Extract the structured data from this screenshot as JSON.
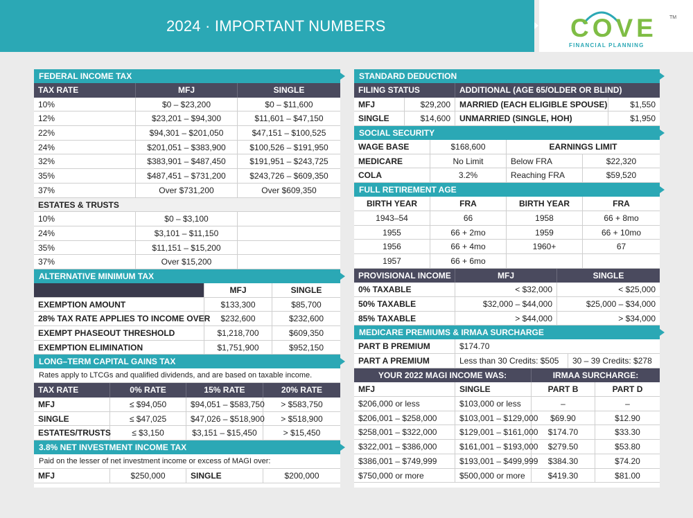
{
  "header": {
    "title": "2024 · IMPORTANT NUMBERS"
  },
  "logo": {
    "word": "COVE",
    "tm": "TM",
    "sub": "FINANCIAL PLANNING"
  },
  "fit": {
    "title": "FEDERAL INCOME TAX",
    "cols": [
      "TAX RATE",
      "MFJ",
      "SINGLE"
    ],
    "rows": [
      [
        "10%",
        "$0 – $23,200",
        "$0 – $11,600"
      ],
      [
        "12%",
        "$23,201 – $94,300",
        "$11,601 – $47,150"
      ],
      [
        "22%",
        "$94,301 – $201,050",
        "$47,151 – $100,525"
      ],
      [
        "24%",
        "$201,051 – $383,900",
        "$100,526 – $191,950"
      ],
      [
        "32%",
        "$383,901 – $487,450",
        "$191,951 – $243,725"
      ],
      [
        "35%",
        "$487,451 – $731,200",
        "$243,726 – $609,350"
      ],
      [
        "37%",
        "Over $731,200",
        "Over $609,350"
      ]
    ],
    "estates_title": "ESTATES & TRUSTS",
    "estates": [
      [
        "10%",
        "$0 – $3,100"
      ],
      [
        "24%",
        "$3,101 – $11,150"
      ],
      [
        "35%",
        "$11,151 – $15,200"
      ],
      [
        "37%",
        "Over $15,200"
      ]
    ]
  },
  "amt": {
    "title": "ALTERNATIVE MINIMUM TAX",
    "cols": [
      "",
      "MFJ",
      "SINGLE"
    ],
    "rows": [
      [
        "EXEMPTION AMOUNT",
        "$133,300",
        "$85,700"
      ],
      [
        "28% TAX RATE APPLIES TO INCOME OVER",
        "$232,600",
        "$232,600"
      ],
      [
        "EXEMPT PHASEOUT THRESHOLD",
        "$1,218,700",
        "$609,350"
      ],
      [
        "EXEMPTION ELIMINATION",
        "$1,751,900",
        "$952,150"
      ]
    ]
  },
  "ltcg": {
    "title": "LONG–TERM CAPITAL GAINS TAX",
    "note": "Rates apply to LTCGs and qualified dividends, and are based on taxable income.",
    "cols": [
      "TAX RATE",
      "0% RATE",
      "15% RATE",
      "20% RATE"
    ],
    "rows": [
      [
        "MFJ",
        "≤ $94,050",
        "$94,051 – $583,750",
        "> $583,750"
      ],
      [
        "SINGLE",
        "≤ $47,025",
        "$47,026 – $518,900",
        "> $518,900"
      ],
      [
        "ESTATES/TRUSTS",
        "≤ $3,150",
        "$3,151 – $15,450",
        "> $15,450"
      ]
    ]
  },
  "niit": {
    "title": "3.8% NET INVESTMENT INCOME TAX",
    "note": "Paid on the lesser of net investment income or excess of MAGI over:",
    "row": [
      "MFJ",
      "$250,000",
      "SINGLE",
      "$200,000"
    ]
  },
  "sd": {
    "title": "STANDARD DEDUCTION",
    "cols": [
      "FILING STATUS",
      "ADDITIONAL (AGE 65/OLDER OR BLIND)"
    ],
    "rows": [
      [
        "MFJ",
        "$29,200",
        "MARRIED (EACH ELIGIBLE SPOUSE)",
        "$1,550"
      ],
      [
        "SINGLE",
        "$14,600",
        "UNMARRIED (SINGLE, HOH)",
        "$1,950"
      ]
    ]
  },
  "ss": {
    "title": "SOCIAL SECURITY",
    "earnings_limit": "EARNINGS LIMIT",
    "rows": [
      [
        "WAGE BASE",
        "$168,600"
      ],
      [
        "MEDICARE",
        "No Limit",
        "Below FRA",
        "$22,320"
      ],
      [
        "COLA",
        "3.2%",
        "Reaching FRA",
        "$59,520"
      ]
    ]
  },
  "fra": {
    "title": "FULL RETIREMENT AGE",
    "cols": [
      "BIRTH YEAR",
      "FRA",
      "BIRTH YEAR",
      "FRA"
    ],
    "rows": [
      [
        "1943–54",
        "66",
        "1958",
        "66 + 8mo"
      ],
      [
        "1955",
        "66 + 2mo",
        "1959",
        "66 + 10mo"
      ],
      [
        "1956",
        "66 + 4mo",
        "1960+",
        "67"
      ],
      [
        "1957",
        "66 + 6mo",
        "",
        ""
      ]
    ]
  },
  "prov": {
    "cols": [
      "PROVISIONAL INCOME",
      "MFJ",
      "SINGLE"
    ],
    "rows": [
      [
        "0% TAXABLE",
        "< $32,000",
        "< $25,000"
      ],
      [
        "50% TAXABLE",
        "$32,000 – $44,000",
        "$25,000 – $34,000"
      ],
      [
        "85% TAXABLE",
        "> $44,000",
        "> $34,000"
      ]
    ]
  },
  "medicare": {
    "title": "MEDICARE PREMIUMS & IRMAA SURCHARGE",
    "partb": [
      "PART B PREMIUM",
      "$174.70"
    ],
    "parta": [
      "PART A PREMIUM",
      "Less than 30 Credits: $505",
      "30 – 39 Credits: $278"
    ],
    "hdr": [
      "YOUR 2022 MAGI INCOME WAS:",
      "IRMAA SURCHARGE:"
    ],
    "cols": [
      "MFJ",
      "SINGLE",
      "PART B",
      "PART D"
    ],
    "rows": [
      [
        "$206,000 or less",
        "$103,000 or less",
        "–",
        "–"
      ],
      [
        "$206,001 – $258,000",
        "$103,001 – $129,000",
        "$69.90",
        "$12.90"
      ],
      [
        "$258,001 – $322,000",
        "$129,001 – $161,000",
        "$174.70",
        "$33.30"
      ],
      [
        "$322,001 – $386,000",
        "$161,001 – $193,000",
        "$279.50",
        "$53.80"
      ],
      [
        "$386,001 – $749,999",
        "$193,001 – $499,999",
        "$384.30",
        "$74.20"
      ],
      [
        "$750,000 or more",
        "$500,000 or more",
        "$419.30",
        "$81.00"
      ]
    ]
  },
  "colors": {
    "teal": "#2ba8b5",
    "dark": "#4a4a5e",
    "green": "#7fbd45"
  }
}
